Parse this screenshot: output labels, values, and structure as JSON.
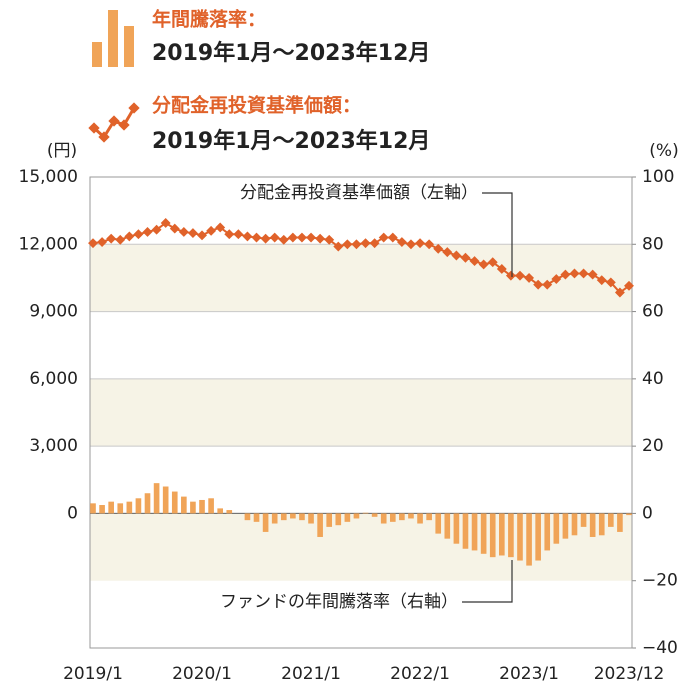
{
  "chart_data": {
    "type": "bar-line",
    "legend": [
      {
        "label": "年間騰落率：",
        "period": "2019年1月～2023年12月"
      },
      {
        "label": "分配金再投資基準価額：",
        "period": "2019年1月～2023年12月"
      }
    ],
    "y_unit": "(円)",
    "y2_unit": "(%)",
    "annotations": [
      "分配金再投資基準価額（左軸）",
      "ファンドの年間騰落率（右軸）"
    ],
    "categories": [
      "2019/1",
      null,
      null,
      null,
      null,
      null,
      null,
      null,
      null,
      null,
      null,
      null,
      "2020/1",
      null,
      null,
      null,
      null,
      null,
      null,
      null,
      null,
      null,
      null,
      null,
      "2021/1",
      null,
      null,
      null,
      null,
      null,
      null,
      null,
      null,
      null,
      null,
      null,
      "2022/1",
      null,
      null,
      null,
      null,
      null,
      null,
      null,
      null,
      null,
      null,
      null,
      "2023/1",
      null,
      null,
      null,
      null,
      null,
      null,
      null,
      null,
      null,
      null,
      "2023/12"
    ],
    "series": [
      {
        "name": "年間騰落率",
        "type": "bar",
        "axis": "y2",
        "color": "#f0a458",
        "values": [
          3,
          2.5,
          3.5,
          3,
          3.5,
          4.5,
          6,
          9,
          8,
          6.5,
          5,
          3.5,
          4,
          4.5,
          1.5,
          1,
          0,
          -2,
          -2.5,
          -5.5,
          -3,
          -2,
          -1.5,
          -2,
          -3,
          -7,
          -4,
          -3.5,
          -2.5,
          -1.5,
          0.2,
          -1,
          -3,
          -2.5,
          -2,
          -1.5,
          -3,
          -2,
          -6,
          -7.5,
          -9,
          -10.5,
          -11,
          -12,
          -13,
          -12.5,
          -13,
          -14,
          -15.5,
          -14,
          -11,
          -9,
          -7.5,
          -6.5,
          -4,
          -7,
          -6.5,
          -4,
          -5.5,
          -0.5
        ]
      },
      {
        "name": "分配金再投資基準価額",
        "type": "line",
        "axis": "y",
        "color": "#e0622a",
        "values": [
          12050,
          12100,
          12250,
          12200,
          12350,
          12450,
          12550,
          12650,
          12950,
          12700,
          12550,
          12500,
          12400,
          12600,
          12750,
          12450,
          12450,
          12350,
          12300,
          12250,
          12300,
          12200,
          12300,
          12300,
          12300,
          12250,
          12200,
          11900,
          12000,
          12000,
          12050,
          12050,
          12300,
          12300,
          12100,
          12000,
          12050,
          12000,
          11800,
          11650,
          11500,
          11400,
          11250,
          11100,
          11200,
          10900,
          10600,
          10600,
          10500,
          10200,
          10200,
          10450,
          10650,
          10700,
          10700,
          10650,
          10400,
          10300,
          9850,
          10150
        ]
      }
    ],
    "ylim": [
      -6000,
      15000
    ],
    "yticks": [
      0,
      {
        "value": 3000,
        "label": "3,000"
      },
      {
        "value": 6000,
        "label": "6,000"
      },
      {
        "value": 9000,
        "label": "9,000"
      },
      {
        "value": 12000,
        "label": "12,000"
      },
      {
        "value": 15000,
        "label": "15,000"
      }
    ],
    "y2lim": [
      -40,
      100
    ],
    "y2ticks": [
      {
        "value": -40,
        "label": "−40"
      },
      {
        "value": -20,
        "label": "−20"
      },
      0,
      20,
      40,
      60,
      80,
      100
    ],
    "grid": true
  }
}
